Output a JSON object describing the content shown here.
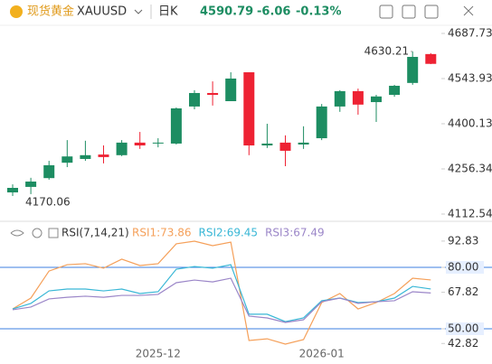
{
  "header": {
    "name": "现货黄金",
    "symbol": "XAUUSD",
    "period": "日K",
    "price": "4590.79",
    "change": "-6.06",
    "change_pct": "-0.13%"
  },
  "chart_data": [
    {
      "type": "candlestick",
      "up_color": "#1d8d62",
      "down_color": "#ee2233",
      "categories": [
        null,
        null,
        null,
        null,
        null,
        null,
        null,
        null,
        "2025-12",
        null,
        null,
        null,
        null,
        null,
        null,
        null,
        null,
        "2026-01",
        null,
        null,
        null,
        null,
        null,
        null
      ],
      "open": [
        4181.5,
        4199,
        4227,
        4276,
        4288,
        4302,
        4300,
        4340,
        4338,
        4337,
        4455,
        4498,
        4472,
        4564,
        4331,
        4340,
        4334,
        4354,
        4455,
        4504,
        4469,
        4492,
        4530,
        4622
      ],
      "high": [
        4207,
        4228,
        4282,
        4348,
        4346,
        4331,
        4348,
        4374,
        4354,
        4452,
        4507,
        4535,
        4564,
        4564,
        4400,
        4363,
        4392,
        4463,
        4507,
        4512,
        4492,
        4524,
        4630.21,
        4625
      ],
      "low": [
        4170.06,
        4176,
        4222,
        4262,
        4282,
        4274,
        4297,
        4320,
        4325,
        4334,
        4446,
        4458,
        4472,
        4300,
        4323,
        4265,
        4320,
        4348,
        4438,
        4429,
        4406,
        4486,
        4524,
        4590
      ],
      "close": [
        4195.9,
        4216,
        4268,
        4296,
        4300,
        4294,
        4340,
        4331,
        4340,
        4449,
        4498,
        4492,
        4544,
        4331,
        4337,
        4314,
        4340,
        4455,
        4504,
        4461,
        4487,
        4521,
        4613,
        4590.79
      ],
      "ylim": [
        4089.5,
        4713.6
      ],
      "yticks": [
        4112.54,
        4256.34,
        4400.13,
        4543.93,
        4687.73
      ]
    },
    {
      "type": "line",
      "title": "RSI(7,14,21)",
      "series": [
        {
          "name": "RSI1:73.86",
          "color": "#f5a05a",
          "values": [
            59.7,
            65.0,
            78.2,
            81.3,
            81.8,
            79.6,
            84.0,
            80.9,
            81.8,
            91.5,
            92.8,
            90.6,
            92.3,
            44.3,
            45.1,
            42.5,
            44.7,
            62.8,
            67.2,
            59.7,
            62.8,
            67.2,
            74.7,
            73.86
          ]
        },
        {
          "name": "RSI2:69.45",
          "color": "#39b7d6",
          "values": [
            59.7,
            62.4,
            68.5,
            69.4,
            69.4,
            68.5,
            69.4,
            67.2,
            68.1,
            79.1,
            80.4,
            79.6,
            81.3,
            57.1,
            57.1,
            53.5,
            55.3,
            63.7,
            65.0,
            62.8,
            63.2,
            65.0,
            70.7,
            69.45
          ]
        },
        {
          "name": "RSI3:67.49",
          "color": "#9b86c8",
          "values": [
            59.3,
            60.6,
            64.6,
            65.4,
            65.9,
            65.4,
            66.3,
            66.3,
            66.8,
            72.5,
            73.8,
            72.9,
            74.7,
            56.2,
            55.3,
            53.1,
            54.4,
            63.2,
            65.0,
            62.4,
            63.2,
            63.7,
            68.1,
            67.49
          ]
        }
      ],
      "ylim": [
        35,
        95
      ],
      "yticks": [
        {
          "value": 42.82,
          "label": "42.82"
        },
        {
          "value": 50,
          "label": "50.00"
        },
        {
          "value": 67.82,
          "label": "67.82"
        },
        {
          "value": 80,
          "label": "80.00"
        },
        {
          "value": 92.83,
          "label": "92.83"
        }
      ],
      "reference_lines": [
        80,
        50
      ],
      "reference_color": "#3d7fe0"
    }
  ]
}
